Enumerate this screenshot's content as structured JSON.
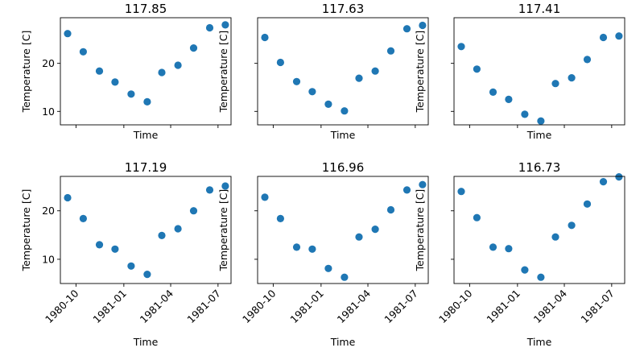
{
  "chart_data": [
    {
      "type": "scatter",
      "title": "117.85",
      "xlabel": "Time",
      "ylabel": "Temperature [C]",
      "x": [
        "1980-09-15",
        "1980-10-15",
        "1980-11-15",
        "1980-12-15",
        "1981-01-15",
        "1981-02-15",
        "1981-03-15",
        "1981-04-15",
        "1981-05-15",
        "1981-06-15",
        "1981-07-15"
      ],
      "y": [
        26.2,
        22.4,
        18.4,
        16.1,
        13.6,
        12.0,
        18.1,
        19.6,
        23.2,
        27.4,
        28.0
      ],
      "ylim": [
        7.2,
        29.5
      ],
      "yticks": [
        10,
        20
      ],
      "xticks": [
        "1980-10",
        "1981-01",
        "1981-04",
        "1981-07"
      ],
      "xtick_labels_visible": false,
      "ytick_labels_visible": true,
      "color": "#1f77b4"
    },
    {
      "type": "scatter",
      "title": "117.63",
      "xlabel": "Time",
      "ylabel": "Temperature [C]",
      "x": [
        "1980-09-15",
        "1980-10-15",
        "1980-11-15",
        "1980-12-15",
        "1981-01-15",
        "1981-02-15",
        "1981-03-15",
        "1981-04-15",
        "1981-05-15",
        "1981-06-15",
        "1981-07-15"
      ],
      "y": [
        25.4,
        20.2,
        16.2,
        14.1,
        11.5,
        10.1,
        16.9,
        18.4,
        22.6,
        27.2,
        27.9
      ],
      "ylim": [
        7.2,
        29.5
      ],
      "yticks": [
        10,
        20
      ],
      "xticks": [
        "1980-10",
        "1981-01",
        "1981-04",
        "1981-07"
      ],
      "xtick_labels_visible": false,
      "ytick_labels_visible": false,
      "color": "#1f77b4"
    },
    {
      "type": "scatter",
      "title": "117.41",
      "xlabel": "Time",
      "ylabel": "Temperature [C]",
      "x": [
        "1980-09-15",
        "1980-10-15",
        "1980-11-15",
        "1980-12-15",
        "1981-01-15",
        "1981-02-15",
        "1981-03-15",
        "1981-04-15",
        "1981-05-15",
        "1981-06-15",
        "1981-07-15"
      ],
      "y": [
        23.5,
        18.8,
        14.0,
        12.5,
        9.4,
        8.0,
        15.8,
        17.0,
        20.8,
        25.4,
        25.7
      ],
      "ylim": [
        7.2,
        29.5
      ],
      "yticks": [
        10,
        20
      ],
      "xticks": [
        "1980-10",
        "1981-01",
        "1981-04",
        "1981-07"
      ],
      "xtick_labels_visible": false,
      "ytick_labels_visible": false,
      "color": "#1f77b4"
    },
    {
      "type": "scatter",
      "title": "117.19",
      "xlabel": "Time",
      "ylabel": "Temperature [C]",
      "x": [
        "1980-09-15",
        "1980-10-15",
        "1980-11-15",
        "1980-12-15",
        "1981-01-15",
        "1981-02-15",
        "1981-03-15",
        "1981-04-15",
        "1981-05-15",
        "1981-06-15",
        "1981-07-15"
      ],
      "y": [
        22.7,
        18.4,
        13.0,
        12.1,
        8.6,
        6.9,
        14.9,
        16.3,
        20.0,
        24.3,
        25.1
      ],
      "ylim": [
        5.0,
        27.1
      ],
      "yticks": [
        10,
        20
      ],
      "xticks": [
        "1980-10",
        "1981-01",
        "1981-04",
        "1981-07"
      ],
      "xtick_labels_visible": true,
      "ytick_labels_visible": true,
      "color": "#1f77b4"
    },
    {
      "type": "scatter",
      "title": "116.96",
      "xlabel": "Time",
      "ylabel": "Temperature [C]",
      "x": [
        "1980-09-15",
        "1980-10-15",
        "1980-11-15",
        "1980-12-15",
        "1981-01-15",
        "1981-02-15",
        "1981-03-15",
        "1981-04-15",
        "1981-05-15",
        "1981-06-15",
        "1981-07-15"
      ],
      "y": [
        22.8,
        18.4,
        12.5,
        12.1,
        8.1,
        6.3,
        14.6,
        16.2,
        20.2,
        24.3,
        25.4
      ],
      "ylim": [
        5.0,
        27.1
      ],
      "yticks": [
        10,
        20
      ],
      "xticks": [
        "1980-10",
        "1981-01",
        "1981-04",
        "1981-07"
      ],
      "xtick_labels_visible": true,
      "ytick_labels_visible": false,
      "color": "#1f77b4"
    },
    {
      "type": "scatter",
      "title": "116.73",
      "xlabel": "Time",
      "ylabel": "Temperature [C]",
      "x": [
        "1980-09-15",
        "1980-10-15",
        "1980-11-15",
        "1980-12-15",
        "1981-01-15",
        "1981-02-15",
        "1981-03-15",
        "1981-04-15",
        "1981-05-15",
        "1981-06-15",
        "1981-07-15"
      ],
      "y": [
        24.0,
        18.6,
        12.5,
        12.2,
        7.8,
        6.3,
        14.6,
        17.0,
        21.4,
        26.0,
        27.0
      ],
      "ylim": [
        5.0,
        27.1
      ],
      "yticks": [
        10,
        20
      ],
      "xticks": [
        "1980-10",
        "1981-01",
        "1981-04",
        "1981-07"
      ],
      "xtick_labels_visible": true,
      "ytick_labels_visible": false,
      "color": "#1f77b4"
    }
  ]
}
